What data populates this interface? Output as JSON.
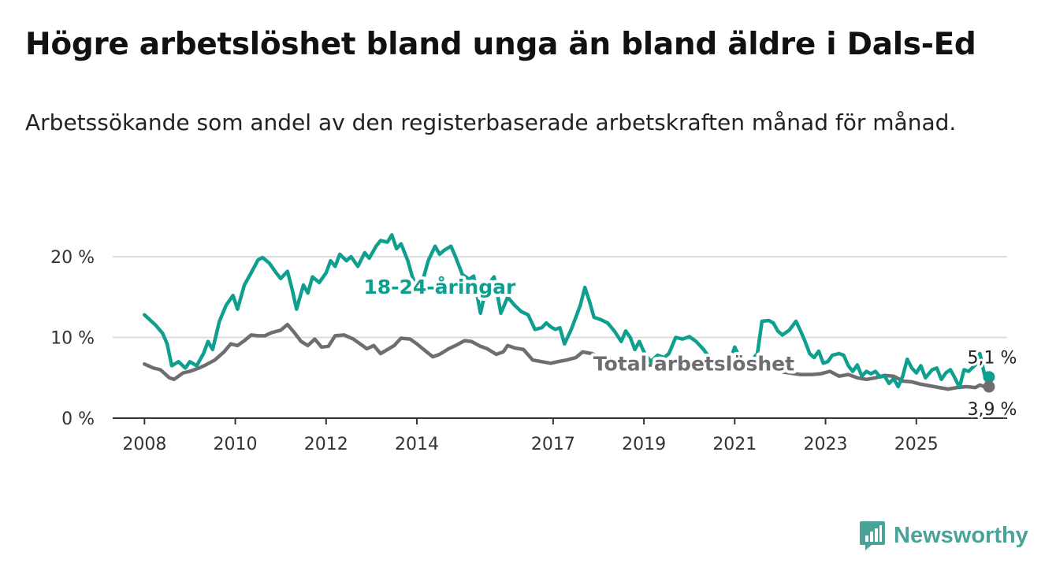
{
  "title": "Högre arbetslöshet bland unga än bland äldre i Dals-Ed",
  "subtitle": "Arbetssökande som andel av den registerbaserade arbetskraften månad för månad.",
  "brand": {
    "name": "Newsworthy",
    "icon": "newsworthy-logo-icon",
    "color": "#4aa398"
  },
  "colors": {
    "youth": "#0f9f8f",
    "total": "#6e6e72",
    "grid": "#dddddd",
    "axis": "#333333"
  },
  "chart_data": {
    "type": "line",
    "xlabel": "",
    "ylabel": "",
    "ylim": [
      0,
      24
    ],
    "yticks": [
      0,
      10,
      20
    ],
    "ytick_labels": [
      "0 %",
      "10 %",
      "20 %"
    ],
    "xticks": [
      2008,
      2010,
      2012,
      2014,
      2017,
      2019,
      2021,
      2023,
      2025
    ],
    "xtick_labels": [
      "2008",
      "2010",
      "2012",
      "2014",
      "2017",
      "2019",
      "2021",
      "2023",
      "2025"
    ],
    "grid": true,
    "series": [
      {
        "name": "18-24-åringar",
        "color": "#0f9f8f",
        "end_label": "5,1 %",
        "points": [
          [
            2008.0,
            12.8
          ],
          [
            2008.25,
            11.5
          ],
          [
            2008.4,
            10.5
          ],
          [
            2008.5,
            9.2
          ],
          [
            2008.6,
            6.5
          ],
          [
            2008.75,
            7.0
          ],
          [
            2008.9,
            6.2
          ],
          [
            2009.0,
            7.0
          ],
          [
            2009.15,
            6.5
          ],
          [
            2009.3,
            8.0
          ],
          [
            2009.4,
            9.5
          ],
          [
            2009.5,
            8.5
          ],
          [
            2009.65,
            12.0
          ],
          [
            2009.8,
            14.0
          ],
          [
            2009.95,
            15.2
          ],
          [
            2010.05,
            13.5
          ],
          [
            2010.2,
            16.5
          ],
          [
            2010.35,
            18.0
          ],
          [
            2010.5,
            19.6
          ],
          [
            2010.6,
            19.9
          ],
          [
            2010.75,
            19.2
          ],
          [
            2010.9,
            18.0
          ],
          [
            2011.0,
            17.3
          ],
          [
            2011.15,
            18.2
          ],
          [
            2011.25,
            16.0
          ],
          [
            2011.35,
            13.5
          ],
          [
            2011.5,
            16.5
          ],
          [
            2011.6,
            15.5
          ],
          [
            2011.7,
            17.5
          ],
          [
            2011.85,
            16.8
          ],
          [
            2012.0,
            18.0
          ],
          [
            2012.1,
            19.5
          ],
          [
            2012.2,
            18.8
          ],
          [
            2012.3,
            20.3
          ],
          [
            2012.45,
            19.5
          ],
          [
            2012.55,
            20.0
          ],
          [
            2012.7,
            18.8
          ],
          [
            2012.85,
            20.5
          ],
          [
            2012.95,
            19.8
          ],
          [
            2013.1,
            21.3
          ],
          [
            2013.2,
            22.0
          ],
          [
            2013.35,
            21.8
          ],
          [
            2013.45,
            22.7
          ],
          [
            2013.55,
            21.0
          ],
          [
            2013.65,
            21.6
          ],
          [
            2013.8,
            19.5
          ],
          [
            2013.9,
            17.5
          ],
          [
            2014.0,
            16.2
          ],
          [
            2014.15,
            17.5
          ],
          [
            2014.25,
            19.5
          ],
          [
            2014.4,
            21.3
          ],
          [
            2014.5,
            20.3
          ],
          [
            2014.6,
            20.8
          ],
          [
            2014.75,
            21.3
          ],
          [
            2014.85,
            20.0
          ],
          [
            2015.0,
            17.8
          ],
          [
            2015.15,
            17.2
          ],
          [
            2015.25,
            17.6
          ],
          [
            2015.4,
            13.0
          ],
          [
            2015.5,
            15.5
          ],
          [
            2015.6,
            16.8
          ],
          [
            2015.7,
            17.5
          ],
          [
            2015.85,
            13.0
          ],
          [
            2016.0,
            15.0
          ],
          [
            2016.15,
            14.0
          ],
          [
            2016.3,
            13.2
          ],
          [
            2016.45,
            12.8
          ],
          [
            2016.6,
            11.0
          ],
          [
            2016.75,
            11.2
          ],
          [
            2016.85,
            11.8
          ],
          [
            2016.95,
            11.3
          ],
          [
            2017.05,
            11.0
          ],
          [
            2017.15,
            11.2
          ],
          [
            2017.25,
            9.2
          ],
          [
            2017.4,
            11.0
          ],
          [
            2017.5,
            12.5
          ],
          [
            2017.6,
            14.0
          ],
          [
            2017.7,
            16.2
          ],
          [
            2017.8,
            14.5
          ],
          [
            2017.9,
            12.5
          ],
          [
            2018.05,
            12.2
          ],
          [
            2018.2,
            11.8
          ],
          [
            2018.35,
            10.8
          ],
          [
            2018.5,
            9.5
          ],
          [
            2018.6,
            10.8
          ],
          [
            2018.7,
            10.0
          ],
          [
            2018.8,
            8.5
          ],
          [
            2018.9,
            9.5
          ],
          [
            2019.0,
            8.2
          ],
          [
            2019.15,
            7.0
          ],
          [
            2019.3,
            7.8
          ],
          [
            2019.45,
            7.5
          ],
          [
            2019.55,
            8.0
          ],
          [
            2019.7,
            10.0
          ],
          [
            2019.85,
            9.8
          ],
          [
            2020.0,
            10.1
          ],
          [
            2020.15,
            9.5
          ],
          [
            2020.3,
            8.6
          ],
          [
            2020.45,
            7.5
          ],
          [
            2020.6,
            7.0
          ],
          [
            2020.75,
            6.6
          ],
          [
            2020.9,
            7.2
          ],
          [
            2021.0,
            8.8
          ],
          [
            2021.1,
            7.6
          ],
          [
            2021.2,
            6.8
          ],
          [
            2021.35,
            7.0
          ],
          [
            2021.5,
            8.0
          ],
          [
            2021.6,
            12.0
          ],
          [
            2021.75,
            12.1
          ],
          [
            2021.85,
            11.8
          ],
          [
            2021.95,
            10.8
          ],
          [
            2022.05,
            10.3
          ],
          [
            2022.2,
            10.9
          ],
          [
            2022.35,
            12.0
          ],
          [
            2022.45,
            10.8
          ],
          [
            2022.55,
            9.5
          ],
          [
            2022.65,
            8.0
          ],
          [
            2022.75,
            7.5
          ],
          [
            2022.85,
            8.3
          ],
          [
            2022.95,
            6.8
          ],
          [
            2023.05,
            7.0
          ],
          [
            2023.15,
            7.8
          ],
          [
            2023.3,
            8.0
          ],
          [
            2023.4,
            7.8
          ],
          [
            2023.5,
            6.5
          ],
          [
            2023.6,
            5.8
          ],
          [
            2023.7,
            6.6
          ],
          [
            2023.8,
            5.2
          ],
          [
            2023.9,
            5.8
          ],
          [
            2024.0,
            5.5
          ],
          [
            2024.1,
            5.8
          ],
          [
            2024.2,
            5.1
          ],
          [
            2024.3,
            5.2
          ],
          [
            2024.4,
            4.3
          ],
          [
            2024.5,
            4.9
          ],
          [
            2024.6,
            3.9
          ],
          [
            2024.7,
            5.2
          ],
          [
            2024.8,
            7.3
          ],
          [
            2024.9,
            6.2
          ],
          [
            2025.0,
            5.6
          ],
          [
            2025.1,
            6.5
          ],
          [
            2025.2,
            5.0
          ],
          [
            2025.35,
            6.0
          ],
          [
            2025.45,
            6.2
          ],
          [
            2025.55,
            4.8
          ],
          [
            2025.65,
            5.6
          ],
          [
            2025.75,
            6.0
          ],
          [
            2025.85,
            5.0
          ],
          [
            2025.95,
            3.8
          ],
          [
            2026.05,
            6.0
          ],
          [
            2026.15,
            5.8
          ],
          [
            2026.3,
            6.6
          ],
          [
            2026.4,
            8.0
          ],
          [
            2026.5,
            5.4
          ],
          [
            2026.6,
            5.1
          ]
        ]
      },
      {
        "name": "Total arbetslöshet",
        "color": "#6e6e72",
        "end_label": "3,9 %",
        "points": [
          [
            2008.0,
            6.7
          ],
          [
            2008.2,
            6.2
          ],
          [
            2008.35,
            6.0
          ],
          [
            2008.55,
            5.0
          ],
          [
            2008.65,
            4.8
          ],
          [
            2008.85,
            5.6
          ],
          [
            2009.0,
            5.8
          ],
          [
            2009.2,
            6.2
          ],
          [
            2009.35,
            6.6
          ],
          [
            2009.55,
            7.2
          ],
          [
            2009.75,
            8.2
          ],
          [
            2009.9,
            9.2
          ],
          [
            2010.05,
            9.0
          ],
          [
            2010.2,
            9.6
          ],
          [
            2010.35,
            10.3
          ],
          [
            2010.5,
            10.2
          ],
          [
            2010.65,
            10.2
          ],
          [
            2010.8,
            10.6
          ],
          [
            2011.0,
            10.9
          ],
          [
            2011.15,
            11.6
          ],
          [
            2011.3,
            10.6
          ],
          [
            2011.45,
            9.5
          ],
          [
            2011.6,
            9.0
          ],
          [
            2011.75,
            9.8
          ],
          [
            2011.9,
            8.8
          ],
          [
            2012.05,
            8.9
          ],
          [
            2012.2,
            10.2
          ],
          [
            2012.4,
            10.3
          ],
          [
            2012.6,
            9.8
          ],
          [
            2012.8,
            9.0
          ],
          [
            2012.9,
            8.6
          ],
          [
            2013.05,
            9.0
          ],
          [
            2013.2,
            8.0
          ],
          [
            2013.35,
            8.5
          ],
          [
            2013.5,
            9.0
          ],
          [
            2013.65,
            9.9
          ],
          [
            2013.85,
            9.8
          ],
          [
            2014.0,
            9.2
          ],
          [
            2014.15,
            8.5
          ],
          [
            2014.35,
            7.6
          ],
          [
            2014.5,
            7.9
          ],
          [
            2014.7,
            8.6
          ],
          [
            2014.85,
            9.0
          ],
          [
            2015.05,
            9.6
          ],
          [
            2015.2,
            9.5
          ],
          [
            2015.4,
            8.9
          ],
          [
            2015.55,
            8.6
          ],
          [
            2015.75,
            7.9
          ],
          [
            2015.9,
            8.2
          ],
          [
            2016.0,
            9.0
          ],
          [
            2016.15,
            8.7
          ],
          [
            2016.35,
            8.5
          ],
          [
            2016.55,
            7.2
          ],
          [
            2016.75,
            7.0
          ],
          [
            2016.95,
            6.8
          ],
          [
            2017.1,
            7.0
          ],
          [
            2017.3,
            7.2
          ],
          [
            2017.5,
            7.5
          ],
          [
            2017.65,
            8.2
          ],
          [
            2017.85,
            8.0
          ],
          [
            2018.05,
            7.6
          ],
          [
            2018.25,
            7.3
          ],
          [
            2018.45,
            7.0
          ],
          [
            2018.6,
            7.2
          ],
          [
            2018.75,
            6.8
          ],
          [
            2018.95,
            6.5
          ],
          [
            2019.2,
            6.6
          ],
          [
            2019.45,
            6.4
          ],
          [
            2019.7,
            6.2
          ],
          [
            2019.95,
            6.0
          ],
          [
            2020.2,
            5.9
          ],
          [
            2020.45,
            6.3
          ],
          [
            2020.7,
            6.5
          ],
          [
            2020.95,
            6.0
          ],
          [
            2021.2,
            6.2
          ],
          [
            2021.45,
            6.0
          ],
          [
            2021.7,
            6.2
          ],
          [
            2021.95,
            5.8
          ],
          [
            2022.2,
            5.6
          ],
          [
            2022.45,
            5.4
          ],
          [
            2022.7,
            5.4
          ],
          [
            2022.9,
            5.5
          ],
          [
            2023.1,
            5.8
          ],
          [
            2023.3,
            5.2
          ],
          [
            2023.5,
            5.4
          ],
          [
            2023.7,
            5.0
          ],
          [
            2023.9,
            4.8
          ],
          [
            2024.1,
            5.0
          ],
          [
            2024.3,
            5.3
          ],
          [
            2024.5,
            5.2
          ],
          [
            2024.7,
            4.6
          ],
          [
            2024.9,
            4.5
          ],
          [
            2025.1,
            4.2
          ],
          [
            2025.3,
            4.0
          ],
          [
            2025.5,
            3.8
          ],
          [
            2025.7,
            3.6
          ],
          [
            2025.9,
            3.8
          ],
          [
            2026.1,
            3.9
          ],
          [
            2026.3,
            3.8
          ],
          [
            2026.4,
            4.1
          ],
          [
            2026.5,
            3.9
          ],
          [
            2026.6,
            3.9
          ]
        ]
      }
    ]
  }
}
